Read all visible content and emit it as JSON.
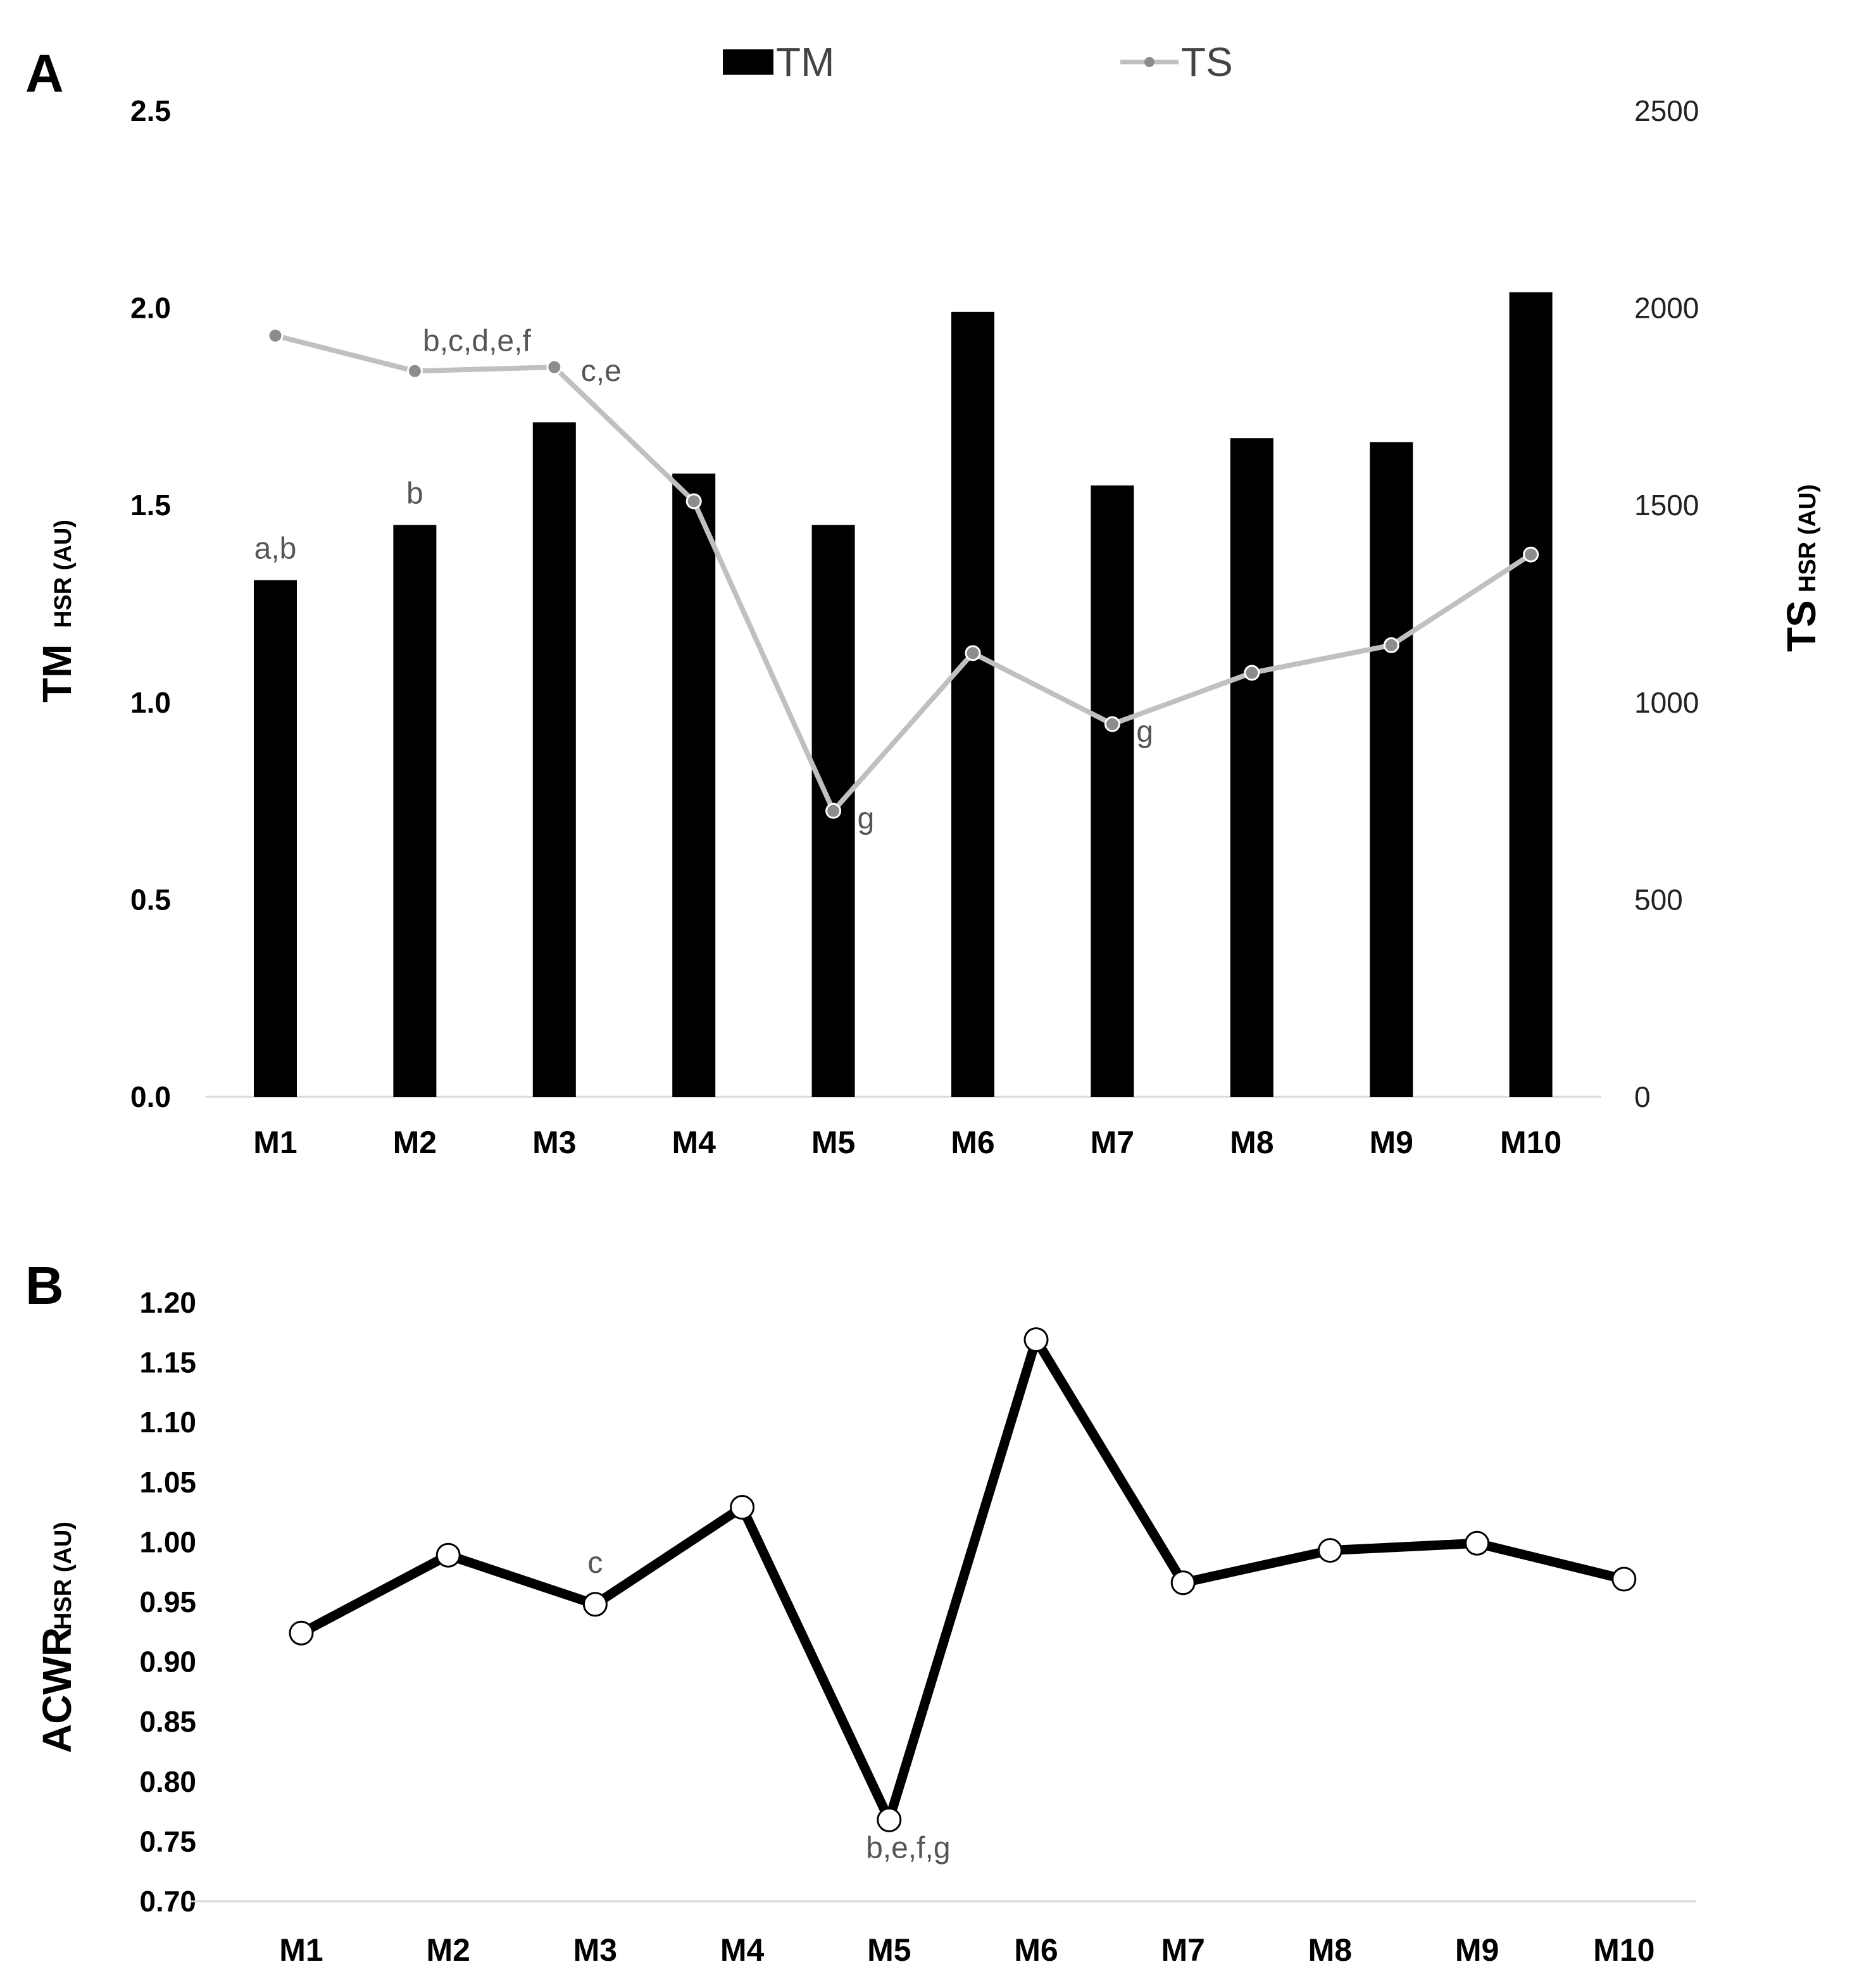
{
  "colors": {
    "bar": "#000000",
    "ts_line": "#c0c0c0",
    "ts_marker": "#8c8c8c",
    "acwr_line": "#000000",
    "axis": "#d9d9d9",
    "text": "#000000",
    "annotation": "#555555"
  },
  "chart_data": [
    {
      "panel": "A",
      "type": "bar",
      "categories": [
        "M1",
        "M2",
        "M3",
        "M4",
        "M5",
        "M6",
        "M7",
        "M8",
        "M9",
        "M10"
      ],
      "legend": {
        "position": "top-center",
        "entries": [
          "TM",
          "TS"
        ]
      },
      "ylabel": {
        "main": "TM",
        "sub": "HSR (AU)"
      },
      "y2label": {
        "main": "TS",
        "sub": "HSR (AU)"
      },
      "ylim": [
        0,
        2.5
      ],
      "y2lim": [
        0,
        2500
      ],
      "yticks": [
        "0.0",
        "0.5",
        "1.0",
        "1.5",
        "2.0",
        "2.5"
      ],
      "y2ticks": [
        "0",
        "500",
        "1000",
        "1500",
        "2000",
        "2500"
      ],
      "series": [
        {
          "name": "TM",
          "type": "bar",
          "axis": "left",
          "values": [
            1.31,
            1.45,
            1.71,
            1.58,
            1.45,
            1.99,
            1.55,
            1.67,
            1.66,
            2.04
          ]
        },
        {
          "name": "TS",
          "type": "line",
          "axis": "right",
          "values": [
            1930,
            1840,
            1850,
            1510,
            725,
            1125,
            945,
            1075,
            1145,
            1375
          ]
        }
      ],
      "annotations": [
        {
          "category": "M1",
          "text": "a,b",
          "series": "TM"
        },
        {
          "category": "M2",
          "text": "b",
          "series": "TM"
        },
        {
          "category": "M2",
          "text": "b,c,d,e,f",
          "series": "TS"
        },
        {
          "category": "M3",
          "text": "c,e",
          "series": "TS"
        },
        {
          "category": "M5",
          "text": "g",
          "series": "TS"
        },
        {
          "category": "M7",
          "text": "g",
          "series": "TS"
        }
      ]
    },
    {
      "panel": "B",
      "type": "line",
      "categories": [
        "M1",
        "M2",
        "M3",
        "M4",
        "M5",
        "M6",
        "M7",
        "M8",
        "M9",
        "M10"
      ],
      "ylabel": {
        "main": "ACWR",
        "sub": "HSR (AU)"
      },
      "ylim": [
        0.7,
        1.2
      ],
      "yticks": [
        "0.70",
        "0.75",
        "0.80",
        "0.85",
        "0.90",
        "0.95",
        "1.00",
        "1.05",
        "1.10",
        "1.15",
        "1.20"
      ],
      "series": [
        {
          "name": "ACWR",
          "values": [
            0.924,
            0.989,
            0.948,
            1.029,
            0.768,
            1.169,
            0.966,
            0.993,
            0.999,
            0.969
          ]
        }
      ],
      "annotations": [
        {
          "category": "M3",
          "text": "c"
        },
        {
          "category": "M5",
          "text": "b,e,f,g"
        }
      ]
    }
  ]
}
